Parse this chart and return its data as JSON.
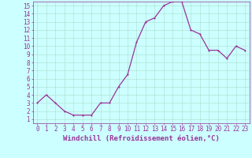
{
  "x": [
    0,
    1,
    2,
    3,
    4,
    5,
    6,
    7,
    8,
    9,
    10,
    11,
    12,
    13,
    14,
    15,
    16,
    17,
    18,
    19,
    20,
    21,
    22,
    23
  ],
  "y": [
    3,
    4,
    3,
    2,
    1.5,
    1.5,
    1.5,
    3,
    3,
    5,
    6.5,
    10.5,
    13,
    13.5,
    15,
    15.5,
    15.5,
    12,
    11.5,
    9.5,
    9.5,
    8.5,
    10,
    9.5
  ],
  "line_color": "#993399",
  "marker_color": "#993399",
  "bg_color": "#ccffff",
  "grid_color": "#aaddcc",
  "xlabel": "Windchill (Refroidissement éolien,°C)",
  "xlim": [
    -0.5,
    23.5
  ],
  "ylim": [
    0.5,
    15.5
  ],
  "yticks": [
    1,
    2,
    3,
    4,
    5,
    6,
    7,
    8,
    9,
    10,
    11,
    12,
    13,
    14,
    15
  ],
  "xticks": [
    0,
    1,
    2,
    3,
    4,
    5,
    6,
    7,
    8,
    9,
    10,
    11,
    12,
    13,
    14,
    15,
    16,
    17,
    18,
    19,
    20,
    21,
    22,
    23
  ],
  "tick_label_color": "#993399",
  "axis_color": "#993399",
  "xlabel_color": "#993399",
  "xlabel_fontsize": 6.5,
  "tick_fontsize": 5.5,
  "linewidth": 0.9,
  "markersize": 2.0
}
